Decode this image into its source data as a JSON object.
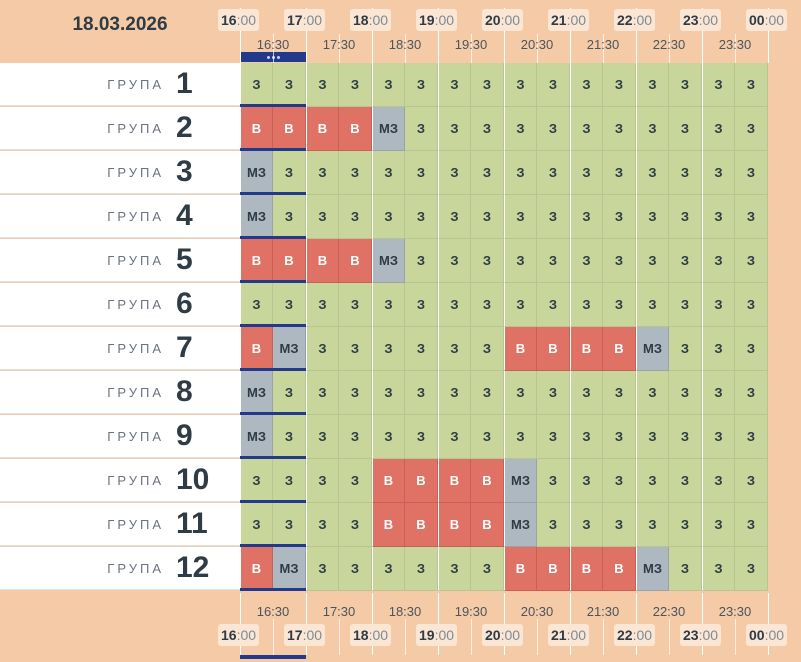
{
  "date": "18.03.2026",
  "hours": [
    "16",
    "17",
    "18",
    "19",
    "20",
    "21",
    "22",
    "23",
    "00"
  ],
  "minute_suffix": ":00",
  "half_hours": [
    "16:30",
    "17:30",
    "18:30",
    "19:30",
    "20:30",
    "21:30",
    "22:30",
    "23:30"
  ],
  "group_label": "ГРУПА",
  "status_text": {
    "z": "З",
    "v": "В",
    "mz": "МЗ"
  },
  "colors": {
    "free": "#c8d69c",
    "busy": "#df7264",
    "partial": "#aeb8c0",
    "header": "#f5caa6",
    "marker": "#233a8c"
  },
  "groups": [
    {
      "number": "1",
      "slots": [
        "z",
        "z",
        "z",
        "z",
        "z",
        "z",
        "z",
        "z",
        "z",
        "z",
        "z",
        "z",
        "z",
        "z",
        "z",
        "z"
      ]
    },
    {
      "number": "2",
      "slots": [
        "v",
        "v",
        "v",
        "v",
        "mz",
        "z",
        "z",
        "z",
        "z",
        "z",
        "z",
        "z",
        "z",
        "z",
        "z",
        "z"
      ]
    },
    {
      "number": "3",
      "slots": [
        "mz",
        "z",
        "z",
        "z",
        "z",
        "z",
        "z",
        "z",
        "z",
        "z",
        "z",
        "z",
        "z",
        "z",
        "z",
        "z"
      ]
    },
    {
      "number": "4",
      "slots": [
        "mz",
        "z",
        "z",
        "z",
        "z",
        "z",
        "z",
        "z",
        "z",
        "z",
        "z",
        "z",
        "z",
        "z",
        "z",
        "z"
      ]
    },
    {
      "number": "5",
      "slots": [
        "v",
        "v",
        "v",
        "v",
        "mz",
        "z",
        "z",
        "z",
        "z",
        "z",
        "z",
        "z",
        "z",
        "z",
        "z",
        "z"
      ]
    },
    {
      "number": "6",
      "slots": [
        "z",
        "z",
        "z",
        "z",
        "z",
        "z",
        "z",
        "z",
        "z",
        "z",
        "z",
        "z",
        "z",
        "z",
        "z",
        "z"
      ]
    },
    {
      "number": "7",
      "slots": [
        "v",
        "mz",
        "z",
        "z",
        "z",
        "z",
        "z",
        "z",
        "v",
        "v",
        "v",
        "v",
        "mz",
        "z",
        "z",
        "z"
      ]
    },
    {
      "number": "8",
      "slots": [
        "mz",
        "z",
        "z",
        "z",
        "z",
        "z",
        "z",
        "z",
        "z",
        "z",
        "z",
        "z",
        "z",
        "z",
        "z",
        "z"
      ]
    },
    {
      "number": "9",
      "slots": [
        "mz",
        "z",
        "z",
        "z",
        "z",
        "z",
        "z",
        "z",
        "z",
        "z",
        "z",
        "z",
        "z",
        "z",
        "z",
        "z"
      ]
    },
    {
      "number": "10",
      "slots": [
        "z",
        "z",
        "z",
        "z",
        "v",
        "v",
        "v",
        "v",
        "mz",
        "z",
        "z",
        "z",
        "z",
        "z",
        "z",
        "z"
      ]
    },
    {
      "number": "11",
      "slots": [
        "z",
        "z",
        "z",
        "z",
        "v",
        "v",
        "v",
        "v",
        "mz",
        "z",
        "z",
        "z",
        "z",
        "z",
        "z",
        "z"
      ]
    },
    {
      "number": "12",
      "slots": [
        "v",
        "mz",
        "z",
        "z",
        "z",
        "z",
        "z",
        "z",
        "v",
        "v",
        "v",
        "v",
        "mz",
        "z",
        "z",
        "z"
      ]
    }
  ]
}
